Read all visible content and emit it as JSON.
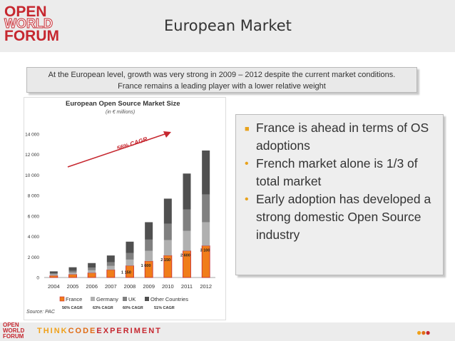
{
  "logo": {
    "line1": "OPEN",
    "line2": "WORLD",
    "line3": "FORUM"
  },
  "title": "European Market",
  "subtitle": {
    "line1": "At the European level, growth was very strong in 2009 – 2012 despite the current market conditions.",
    "line2": "France remains a leading player with a lower relative weight"
  },
  "chart_data": {
    "type": "bar",
    "title": "European Open Source Market Size",
    "subtitle": "(in € millions)",
    "categories": [
      "2004",
      "2005",
      "2006",
      "2007",
      "2008",
      "2009",
      "2010",
      "2011",
      "2012"
    ],
    "series": [
      {
        "name": "France",
        "color": "#f07d1a",
        "values": [
          180,
          300,
          450,
          750,
          1150,
          1600,
          2150,
          2600,
          3100
        ]
      },
      {
        "name": "Germany",
        "color": "#b0b0b0",
        "values": [
          120,
          180,
          260,
          380,
          600,
          1000,
          1500,
          1950,
          2300
        ]
      },
      {
        "name": "UK",
        "color": "#808080",
        "values": [
          100,
          170,
          250,
          370,
          650,
          1100,
          1600,
          2100,
          2700
        ]
      },
      {
        "name": "Other Countries",
        "color": "#505050",
        "values": [
          200,
          350,
          450,
          650,
          1100,
          1700,
          2450,
          3500,
          4300
        ]
      }
    ],
    "data_labels": [
      "1 150",
      "1 600",
      "2 150",
      "2 600",
      "3 100"
    ],
    "cagr_labels": [
      "56% CAGR",
      "63% CAGR",
      "60% CAGR",
      "51% CAGR"
    ],
    "annotation": "56% CAGR",
    "yticks": [
      "0",
      "2 000",
      "4 000",
      "6 000",
      "8 000",
      "10 000",
      "12 000",
      "14 000"
    ],
    "ylim": [
      0,
      14000
    ],
    "source": "Source: PAC"
  },
  "bullets": [
    "France is  ahead in terms of OS adoptions",
    "French market alone is  1/3 of total market",
    "Early adoption has developed a strong domestic Open Source industry"
  ],
  "footer": {
    "logo1": "OPEN",
    "logo2": "WORLD",
    "logo3": "FORUM",
    "tag1": "THINK",
    "tag2": "CODE",
    "tag3": "EXPERIMENT"
  },
  "colors": {
    "brand": "#c6272f",
    "accent": "#f0a11a",
    "bullet": "#e8a21c"
  }
}
